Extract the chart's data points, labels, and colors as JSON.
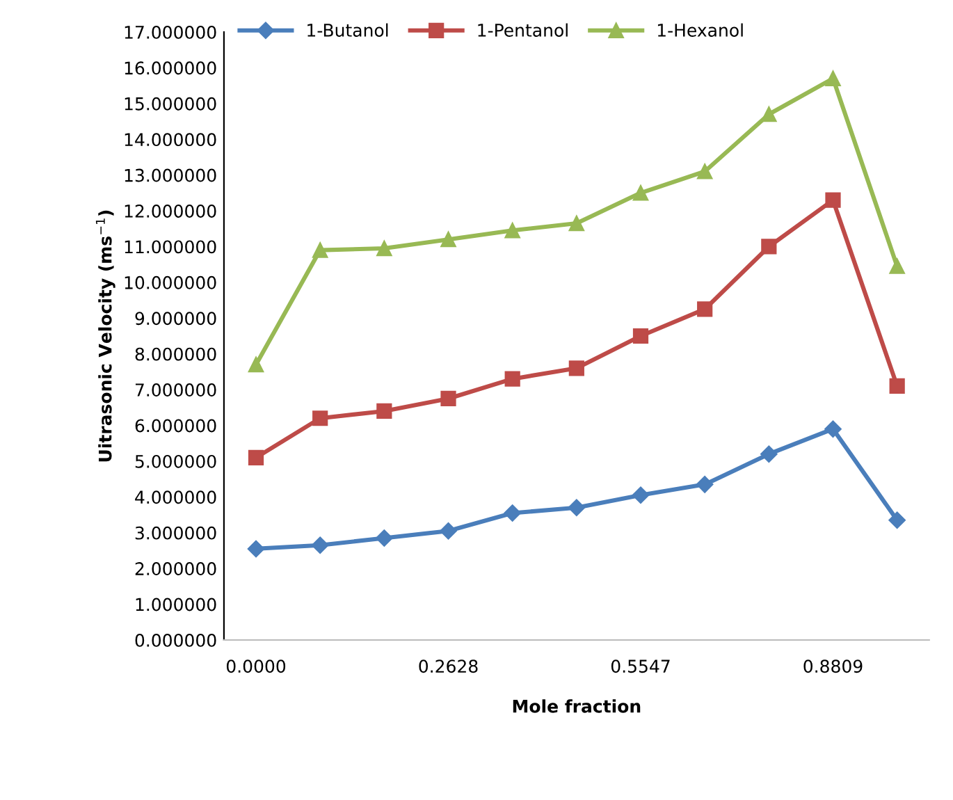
{
  "chart_data": {
    "type": "line",
    "xlabel": "Mole fraction",
    "ylabel": "Uitrasonic Velocity (ms$^{−1}$)",
    "categories": [
      "0.0000",
      null,
      null,
      "0.2628",
      null,
      null,
      "0.5547",
      null,
      null,
      "0.8809",
      null
    ],
    "series": [
      {
        "name": "1-Butanol",
        "color": "#4a7ebb",
        "marker": "diamond",
        "values": [
          2.55,
          2.65,
          2.85,
          3.05,
          3.55,
          3.7,
          4.05,
          4.35,
          5.2,
          5.9,
          3.35
        ]
      },
      {
        "name": "1-Pentanol",
        "color": "#be4b48",
        "marker": "square",
        "values": [
          5.1,
          6.2,
          6.4,
          6.75,
          7.3,
          7.6,
          8.5,
          9.25,
          11.0,
          12.3,
          7.1
        ]
      },
      {
        "name": "1-Hexanol",
        "color": "#98b954",
        "marker": "triangle",
        "values": [
          7.7,
          10.9,
          10.95,
          11.2,
          11.45,
          11.65,
          12.5,
          13.1,
          14.7,
          15.7,
          10.45
        ]
      }
    ],
    "ylim": [
      0,
      17
    ],
    "yticks": [
      {
        "value": 0,
        "label": "0.000000"
      },
      {
        "value": 1,
        "label": "1.000000"
      },
      {
        "value": 2,
        "label": "2.000000"
      },
      {
        "value": 3,
        "label": "3.000000"
      },
      {
        "value": 4,
        "label": "4.000000"
      },
      {
        "value": 5,
        "label": "5.000000"
      },
      {
        "value": 6,
        "label": "6.000000"
      },
      {
        "value": 7,
        "label": "7.000000"
      },
      {
        "value": 8,
        "label": "8.000000"
      },
      {
        "value": 9,
        "label": "9.000000"
      },
      {
        "value": 10,
        "label": "10.000000"
      },
      {
        "value": 11,
        "label": "11.000000"
      },
      {
        "value": 12,
        "label": "12.000000"
      },
      {
        "value": 13,
        "label": "13.000000"
      },
      {
        "value": 14,
        "label": "14.000000"
      },
      {
        "value": 15,
        "label": "15.000000"
      },
      {
        "value": 16,
        "label": "16.000000"
      },
      {
        "value": 17,
        "label": "17.000000"
      }
    ],
    "grid": false,
    "legend": "top left",
    "line_style": "solid"
  }
}
